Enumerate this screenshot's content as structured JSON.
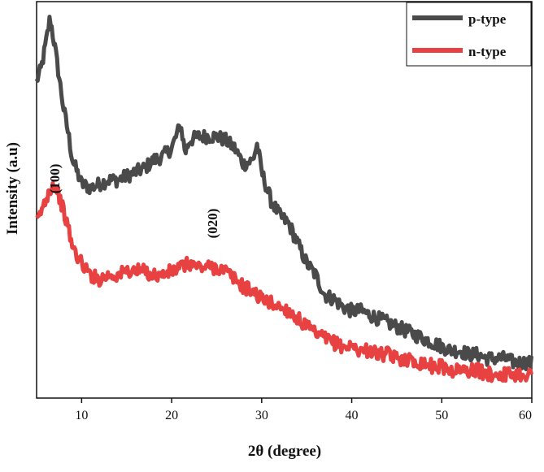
{
  "chart_data": {
    "type": "line",
    "xlabel": "2θ (degree)",
    "ylabel": "Intensity (a.u)",
    "xlim": [
      5,
      60
    ],
    "ylim": [
      0,
      1
    ],
    "x_ticks": [
      "10",
      "20",
      "30",
      "40",
      "50",
      "60"
    ],
    "y_ticks_labeled": false,
    "grid": false,
    "legend_position": "top-right",
    "annotations": [
      {
        "text": "(100)",
        "x": 7,
        "y": 0.52
      },
      {
        "text": "(020)",
        "x": 26,
        "y": 0.46
      }
    ],
    "series": [
      {
        "name": "p-type",
        "color": "#4a4a4a",
        "x": [
          5,
          5.5,
          6,
          6.5,
          7,
          7.5,
          8,
          8.5,
          9,
          10,
          11,
          12,
          13,
          14,
          15,
          16,
          17,
          18,
          19,
          20,
          21,
          21.5,
          22,
          23,
          24,
          25,
          26,
          27,
          28,
          29,
          29.5,
          30,
          31,
          32,
          33,
          34,
          35,
          36,
          37,
          38,
          39,
          40,
          41,
          42,
          43,
          44,
          45,
          46,
          47,
          48,
          49,
          50,
          51,
          52,
          53,
          54,
          55,
          56,
          57,
          58,
          59,
          60
        ],
        "y": [
          0.8,
          0.83,
          0.89,
          0.96,
          0.89,
          0.81,
          0.73,
          0.67,
          0.6,
          0.54,
          0.53,
          0.54,
          0.55,
          0.55,
          0.56,
          0.57,
          0.58,
          0.6,
          0.61,
          0.63,
          0.69,
          0.62,
          0.65,
          0.66,
          0.66,
          0.66,
          0.65,
          0.63,
          0.59,
          0.6,
          0.64,
          0.57,
          0.5,
          0.46,
          0.44,
          0.39,
          0.34,
          0.31,
          0.26,
          0.25,
          0.23,
          0.22,
          0.22,
          0.21,
          0.2,
          0.19,
          0.18,
          0.17,
          0.16,
          0.15,
          0.14,
          0.13,
          0.12,
          0.12,
          0.11,
          0.11,
          0.1,
          0.1,
          0.1,
          0.09,
          0.09,
          0.09
        ]
      },
      {
        "name": "n-type",
        "color": "#e84141",
        "x": [
          5,
          5.5,
          6,
          6.5,
          7,
          7.5,
          8,
          8.5,
          9,
          10,
          11,
          12,
          13,
          14,
          15,
          16,
          17,
          18,
          19,
          20,
          21,
          22,
          23,
          24,
          25,
          26,
          27,
          28,
          29,
          30,
          31,
          32,
          33,
          34,
          35,
          36,
          37,
          38,
          39,
          40,
          41,
          42,
          43,
          44,
          45,
          46,
          47,
          48,
          49,
          50,
          51,
          52,
          53,
          54,
          55,
          56,
          57,
          58,
          59,
          60
        ],
        "y": [
          0.44,
          0.47,
          0.5,
          0.53,
          0.54,
          0.51,
          0.47,
          0.43,
          0.38,
          0.34,
          0.31,
          0.3,
          0.31,
          0.31,
          0.32,
          0.32,
          0.32,
          0.31,
          0.31,
          0.32,
          0.33,
          0.34,
          0.33,
          0.33,
          0.33,
          0.32,
          0.3,
          0.28,
          0.27,
          0.25,
          0.24,
          0.23,
          0.22,
          0.2,
          0.18,
          0.16,
          0.15,
          0.14,
          0.13,
          0.13,
          0.12,
          0.12,
          0.11,
          0.11,
          0.1,
          0.1,
          0.09,
          0.09,
          0.08,
          0.08,
          0.07,
          0.07,
          0.07,
          0.07,
          0.06,
          0.06,
          0.06,
          0.06,
          0.06,
          0.06
        ]
      }
    ]
  }
}
